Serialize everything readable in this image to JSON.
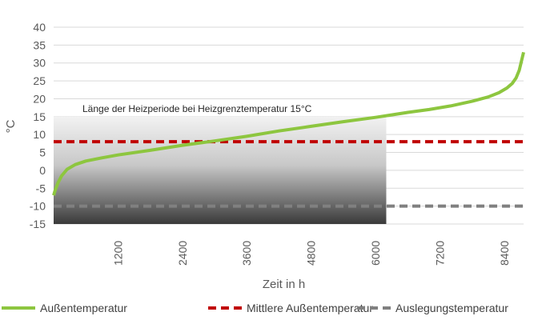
{
  "chart_data": {
    "type": "line",
    "xlabel": "Zeit in h",
    "ylabel": "°C",
    "xlim": [
      0,
      8760
    ],
    "ylim": [
      -15,
      40
    ],
    "y_ticks": [
      -15,
      -10,
      -5,
      0,
      5,
      10,
      15,
      20,
      25,
      30,
      35,
      40
    ],
    "x_ticks": [
      1200,
      2400,
      3600,
      4800,
      6000,
      7200,
      8400
    ],
    "grid": "horizontal",
    "legend_position": "bottom",
    "annotation": {
      "text": "Länge der Heizperiode bei Heizgrenztemperatur  15°C",
      "region": {
        "x_from": 0,
        "x_to": 6200,
        "y_from": -15,
        "y_to": 15
      }
    },
    "series": [
      {
        "name": "Außentemperatur",
        "color": "#8DC63F",
        "style": "solid",
        "x": [
          0,
          30,
          80,
          150,
          250,
          400,
          600,
          900,
          1200,
          1800,
          2400,
          3000,
          3600,
          4200,
          4800,
          5400,
          6000,
          6300,
          6600,
          7000,
          7400,
          7800,
          8100,
          8300,
          8450,
          8550,
          8620,
          8680,
          8720,
          8760
        ],
        "values": [
          -7,
          -5.5,
          -3.5,
          -1.5,
          0.3,
          1.6,
          2.6,
          3.5,
          4.3,
          5.6,
          7.0,
          8.2,
          9.5,
          11.0,
          12.3,
          13.6,
          14.8,
          15.5,
          16.2,
          17.0,
          18.0,
          19.3,
          20.5,
          21.7,
          23.0,
          24.3,
          25.8,
          28.0,
          30.5,
          33.0
        ]
      },
      {
        "name": "Mittlere Außentemperatur",
        "color": "#C00000",
        "style": "dashed",
        "x": [
          0,
          8760
        ],
        "values": [
          8,
          8
        ]
      },
      {
        "name": "Auslegungstemperatur",
        "color": "#808080",
        "style": "dashed",
        "x": [
          0,
          8760
        ],
        "values": [
          -10,
          -10
        ]
      }
    ]
  }
}
